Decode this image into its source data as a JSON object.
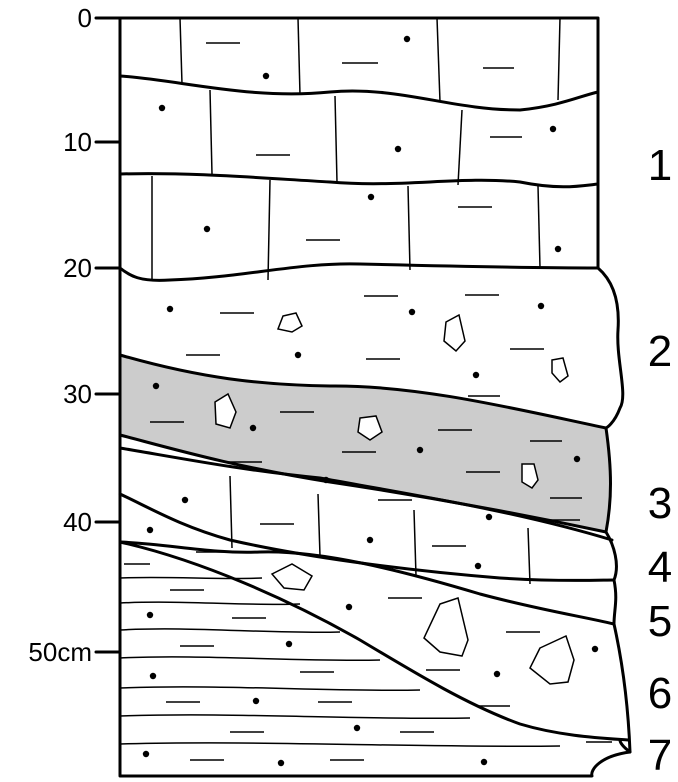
{
  "depth_axis": {
    "labels": [
      "0",
      "10",
      "20",
      "30",
      "40",
      "50cm"
    ]
  },
  "layers": [
    "1",
    "2",
    "3",
    "4",
    "5",
    "6",
    "7"
  ],
  "colors": {
    "stroke": "#000000",
    "shaded_layer_fill": "#cccccc",
    "background": "#ffffff"
  }
}
